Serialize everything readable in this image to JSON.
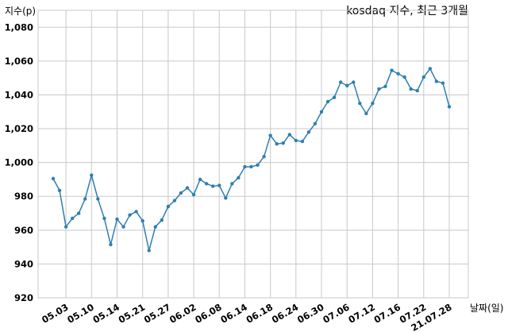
{
  "chart_data": {
    "type": "line",
    "title": "kosdaq 지수, 최근 3개월",
    "y_label": "지수(p)",
    "x_label": "날짜(일)",
    "categories": [
      null,
      null,
      "05.03",
      null,
      null,
      null,
      "05.10",
      null,
      null,
      null,
      "05.14",
      null,
      null,
      null,
      "05.21",
      null,
      null,
      null,
      "05.27",
      null,
      null,
      null,
      "06.02",
      null,
      null,
      null,
      "06.08",
      null,
      null,
      null,
      "06.14",
      null,
      null,
      null,
      "06.18",
      null,
      null,
      null,
      "06.24",
      null,
      null,
      null,
      "06.30",
      null,
      null,
      null,
      "07.06",
      null,
      null,
      null,
      "07.12",
      null,
      null,
      null,
      "07.16",
      null,
      null,
      null,
      "07.22",
      null,
      null,
      null,
      "21.07.28"
    ],
    "series": [
      {
        "name": "kosdaq",
        "color": "#2f7fb0",
        "values": [
          990.5,
          983.5,
          962,
          967,
          970,
          978.5,
          992.5,
          978.5,
          967,
          951.5,
          966.5,
          962,
          969,
          971,
          965.5,
          948,
          962,
          966,
          974,
          977.5,
          982,
          985,
          981,
          990,
          987.5,
          986,
          986.5,
          979,
          987.5,
          991,
          997.5,
          997.5,
          998.5,
          1003.5,
          1016,
          1011,
          1011.5,
          1016.5,
          1013,
          1012.5,
          1018,
          1023,
          1030,
          1036,
          1038.5,
          1047.5,
          1045.5,
          1047.5,
          1035,
          1029,
          1035,
          1043.5,
          1045,
          1054.5,
          1052.5,
          1050.5,
          1043.5,
          1042.5,
          1050.5,
          1055.5,
          1048,
          1047,
          1033
        ]
      }
    ],
    "ylim": [
      920,
      1090
    ],
    "yticks": [
      920,
      940,
      960,
      980,
      {
        "value": 1000,
        "label": "1,000"
      },
      {
        "value": 1020,
        "label": "1,020"
      },
      {
        "value": 1040,
        "label": "1,040"
      },
      {
        "value": 1060,
        "label": "1,060"
      },
      {
        "value": 1080,
        "label": "1,080"
      }
    ],
    "grid": true
  }
}
